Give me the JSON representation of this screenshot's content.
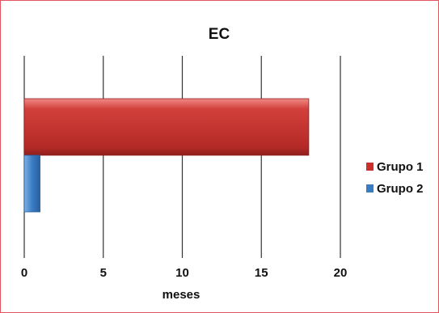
{
  "chart_data": {
    "type": "bar",
    "orientation": "horizontal",
    "title": "EC",
    "xlabel": "meses",
    "ylabel": "",
    "xlim": [
      0,
      20
    ],
    "xticks": [
      0,
      5,
      10,
      15,
      20
    ],
    "grid": true,
    "legend_position": "right",
    "categories": [
      ""
    ],
    "series": [
      {
        "name": "Grupo 1",
        "values": [
          18
        ],
        "color": "#c9302c"
      },
      {
        "name": "Grupo 2",
        "values": [
          1
        ],
        "color": "#3a7cc3"
      }
    ]
  }
}
